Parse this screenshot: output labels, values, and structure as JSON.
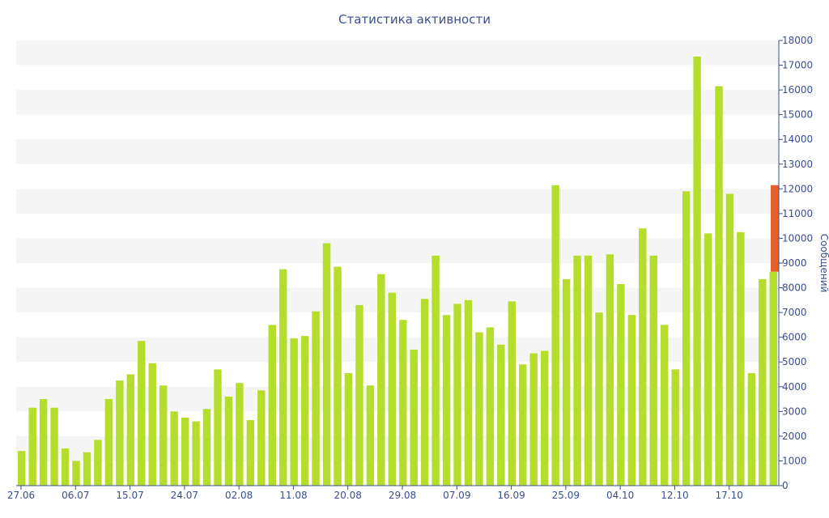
{
  "chart_data": {
    "type": "bar",
    "title": "Статистика активности",
    "ylabel": "Сообщений",
    "xlabel": "",
    "ylim": [
      0,
      18000
    ],
    "y_ticks": [
      0,
      1000,
      2000,
      3000,
      4000,
      5000,
      6000,
      7000,
      8000,
      9000,
      10000,
      11000,
      12000,
      13000,
      14000,
      15000,
      16000,
      17000,
      18000
    ],
    "y_axis_position": "right",
    "x_tick_labels": [
      "27.06",
      "06.07",
      "15.07",
      "24.07",
      "02.08",
      "11.08",
      "20.08",
      "29.08",
      "07.09",
      "16.09",
      "25.09",
      "04.10",
      "12.10",
      "17.10"
    ],
    "x_tick_indices": [
      0,
      5,
      10,
      15,
      20,
      25,
      30,
      35,
      40,
      45,
      50,
      55,
      60,
      65
    ],
    "grid": "alternating horizontal bands",
    "colors": {
      "bar": "#b5dd2c",
      "highlight": "#e3622b",
      "band": "#f5f5f5",
      "axis_text": "#3a4f8f"
    },
    "values": [
      1400,
      3150,
      3500,
      3150,
      1500,
      1000,
      1350,
      1850,
      3500,
      4250,
      4500,
      5850,
      4950,
      4050,
      3000,
      2750,
      2600,
      3100,
      4700,
      3600,
      4150,
      2650,
      3850,
      6500,
      8750,
      5950,
      6050,
      7050,
      9800,
      8850,
      4550,
      7300,
      4050,
      8550,
      7800,
      6700,
      5500,
      7550,
      9300,
      6900,
      7350,
      7500,
      6200,
      6400,
      5700,
      7450,
      4900,
      5350,
      5450,
      12150,
      8350,
      9300,
      9300,
      7000,
      9350,
      8150,
      6900,
      10400,
      9300,
      6500,
      4700,
      11900,
      17350,
      10200,
      16150,
      11800,
      10250,
      4550,
      8350,
      8650
    ],
    "highlight": {
      "from": 8650,
      "to": 12150
    }
  }
}
